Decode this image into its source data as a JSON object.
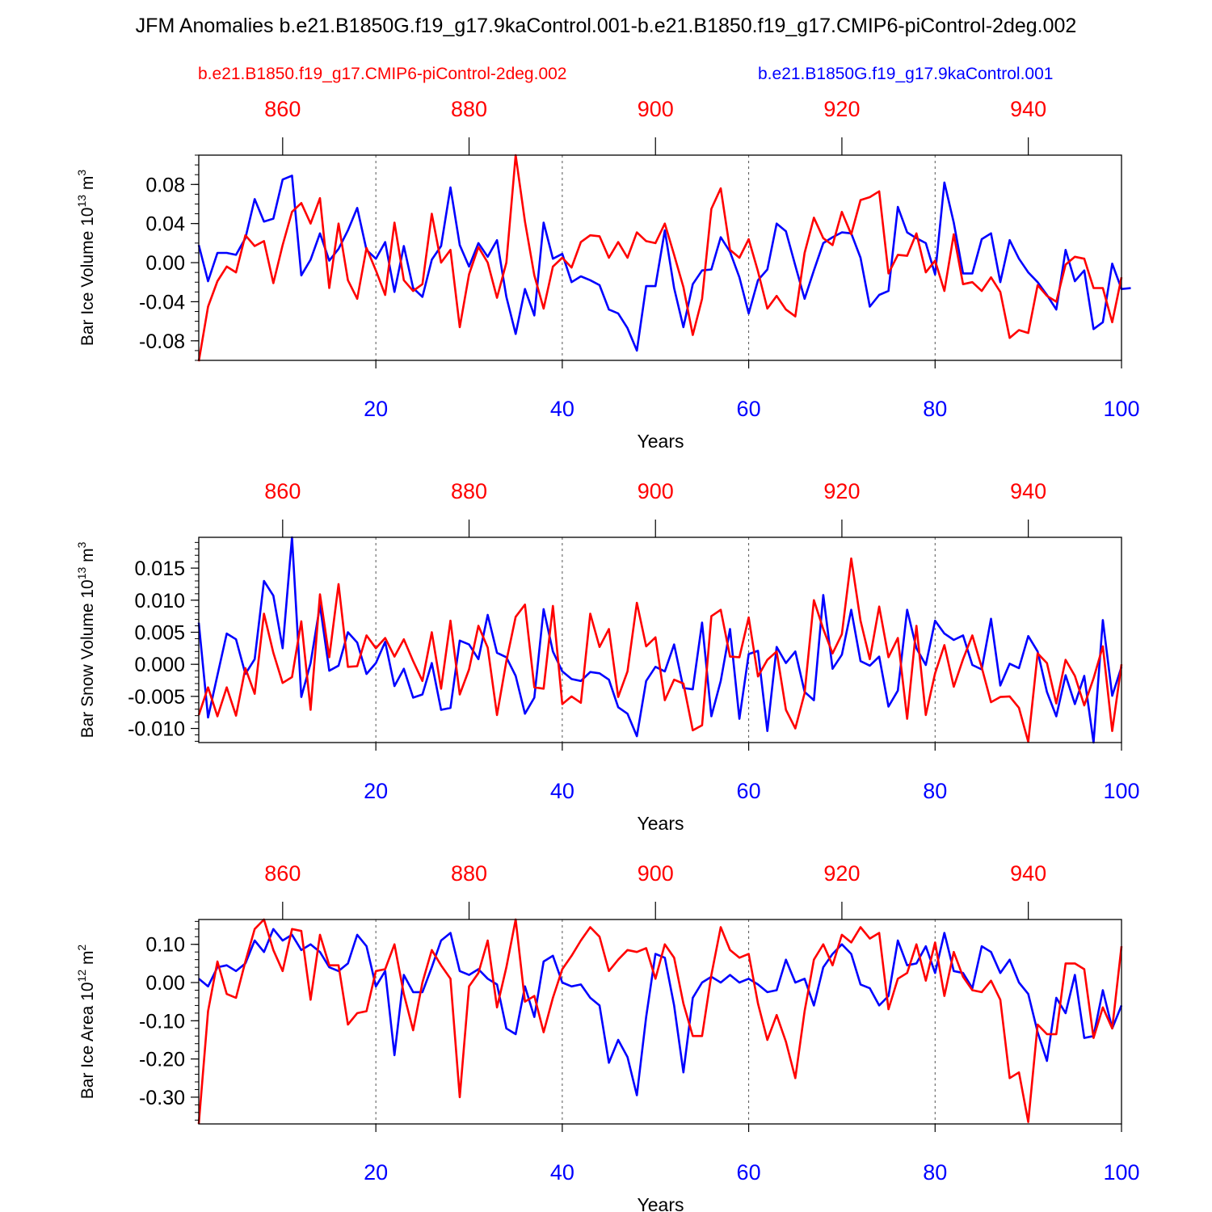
{
  "title": "JFM Anomalies b.e21.B1850G.f19_g17.9kaControl.001-b.e21.B1850.f19_g17.CMIP6-piControl-2deg.002",
  "legend": {
    "red_label": "b.e21.B1850.f19_g17.CMIP6-piControl-2deg.002",
    "blue_label": "b.e21.B1850G.f19_g17.9kaControl.001"
  },
  "colors": {
    "red": "#ff0000",
    "blue": "#0000ff"
  },
  "chart_data": [
    {
      "type": "line",
      "title": "",
      "ylabel": "Bar Ice Volume 10",
      "ylabel_exp": "13",
      "ylabel_unit": " m",
      "ylabel_unit_exp": "3",
      "xlabel": "Years",
      "xlim": [
        1,
        100
      ],
      "ylim": [
        -0.1,
        0.11
      ],
      "yticks": [
        -0.08,
        -0.04,
        0.0,
        0.04,
        0.08
      ],
      "ytick_labels": [
        "-0.08",
        "-0.04",
        "0.00",
        "0.04",
        "0.08"
      ],
      "y_minor_step": 0.01,
      "xticks_bottom": [
        20,
        40,
        60,
        80,
        100
      ],
      "xticks_top": [
        860,
        880,
        900,
        920,
        940
      ],
      "top_axis_offset": 851,
      "series": [
        {
          "name": "b.e21.B1850G.f19_g17.9kaControl.001",
          "color": "blue",
          "values": [
            0.018,
            -0.019,
            0.01,
            0.01,
            0.008,
            0.025,
            0.065,
            0.042,
            0.045,
            0.085,
            0.089,
            -0.013,
            0.003,
            0.03,
            0.002,
            0.014,
            0.033,
            0.056,
            0.013,
            0.004,
            0.021,
            -0.03,
            0.017,
            -0.026,
            -0.035,
            0.003,
            0.017,
            0.077,
            0.018,
            -0.004,
            0.02,
            0.006,
            0.023,
            -0.035,
            -0.073,
            -0.027,
            -0.054,
            0.041,
            0.004,
            0.009,
            -0.02,
            -0.014,
            -0.018,
            -0.023,
            -0.048,
            -0.052,
            -0.067,
            -0.09,
            -0.024,
            -0.024,
            0.033,
            -0.026,
            -0.066,
            -0.022,
            -0.008,
            -0.007,
            0.026,
            0.011,
            -0.015,
            -0.052,
            -0.018,
            -0.007,
            0.04,
            0.032,
            -0.003,
            -0.037,
            -0.008,
            0.02,
            0.026,
            0.031,
            0.03,
            0.005,
            -0.045,
            -0.033,
            -0.029,
            0.057,
            0.031,
            0.025,
            0.02,
            -0.012,
            0.082,
            0.041,
            -0.011,
            -0.011,
            0.024,
            0.03,
            -0.02,
            0.023,
            0.004,
            -0.01,
            -0.02,
            -0.033,
            -0.048,
            0.013,
            -0.019,
            -0.008,
            -0.068,
            -0.061,
            -0.001,
            -0.027,
            -0.026
          ]
        },
        {
          "name": "b.e21.B1850.f19_g17.CMIP6-piControl-2deg.002",
          "color": "red",
          "values": [
            -0.101,
            -0.045,
            -0.019,
            -0.004,
            -0.01,
            0.028,
            0.017,
            0.022,
            -0.021,
            0.018,
            0.052,
            0.061,
            0.04,
            0.066,
            -0.026,
            0.04,
            -0.018,
            -0.037,
            0.015,
            -0.008,
            -0.033,
            0.041,
            -0.018,
            -0.029,
            -0.022,
            0.05,
            0.0,
            0.013,
            -0.066,
            -0.012,
            0.016,
            0.0,
            -0.036,
            0.0,
            0.11,
            0.042,
            -0.013,
            -0.047,
            -0.004,
            0.005,
            -0.005,
            0.021,
            0.028,
            0.027,
            0.005,
            0.021,
            0.005,
            0.031,
            0.022,
            0.02,
            0.04,
            0.008,
            -0.025,
            -0.074,
            -0.037,
            0.055,
            0.076,
            0.013,
            0.005,
            0.024,
            -0.009,
            -0.047,
            -0.034,
            -0.048,
            -0.055,
            0.01,
            0.046,
            0.025,
            0.018,
            0.052,
            0.029,
            0.064,
            0.067,
            0.073,
            -0.011,
            0.008,
            0.007,
            0.03,
            -0.01,
            0.002,
            -0.029,
            0.029,
            -0.022,
            -0.02,
            -0.029,
            -0.015,
            -0.03,
            -0.077,
            -0.069,
            -0.072,
            -0.023,
            -0.034,
            -0.04,
            -0.002,
            0.006,
            0.004,
            -0.026,
            -0.026,
            -0.061,
            -0.015
          ]
        }
      ]
    },
    {
      "type": "line",
      "title": "",
      "ylabel": "Bar Snow Volume 10",
      "ylabel_exp": "13",
      "ylabel_unit": " m",
      "ylabel_unit_exp": "3",
      "xlabel": "Years",
      "xlim": [
        1,
        100
      ],
      "ylim": [
        -0.0122,
        0.0198
      ],
      "yticks": [
        -0.01,
        -0.005,
        0.0,
        0.005,
        0.01,
        0.015
      ],
      "ytick_labels": [
        "-0.010",
        "-0.005",
        "0.000",
        "0.005",
        "0.010",
        "0.015"
      ],
      "y_minor_step": 0.001,
      "xticks_bottom": [
        20,
        40,
        60,
        80,
        100
      ],
      "xticks_top": [
        860,
        880,
        900,
        920,
        940
      ],
      "top_axis_offset": 851,
      "series": [
        {
          "name": "b.e21.B1850G.f19_g17.9kaControl.001",
          "color": "blue",
          "values": [
            0.0065,
            -0.0083,
            -0.0017,
            0.0048,
            0.0039,
            -0.0015,
            0.0008,
            0.013,
            0.0107,
            0.0025,
            0.0198,
            -0.0051,
            0.0002,
            0.0092,
            -0.001,
            -0.0002,
            0.005,
            0.0034,
            -0.0015,
            0.0002,
            0.0035,
            -0.0034,
            -0.0007,
            -0.0052,
            -0.0047,
            0.0002,
            -0.0071,
            -0.0068,
            0.0037,
            0.0031,
            0.0008,
            0.0077,
            0.0018,
            0.0011,
            -0.0018,
            -0.0077,
            -0.0052,
            0.0086,
            0.002,
            -0.0011,
            -0.0023,
            -0.0026,
            -0.0012,
            -0.0014,
            -0.0024,
            -0.0067,
            -0.0077,
            -0.0112,
            -0.0026,
            -0.0004,
            -0.0011,
            0.0031,
            -0.0037,
            -0.0039,
            0.0065,
            -0.0081,
            -0.0026,
            0.0055,
            -0.0085,
            0.0016,
            0.0021,
            -0.0104,
            0.0027,
            0.0002,
            0.002,
            -0.0043,
            -0.0056,
            0.0108,
            -0.0007,
            0.0015,
            0.0085,
            0.0005,
            -0.0002,
            0.0012,
            -0.0066,
            -0.0041,
            0.0085,
            0.0025,
            -0.0001,
            0.0068,
            0.0048,
            0.0038,
            0.0045,
            -0.0001,
            -0.0008,
            0.0071,
            -0.0033,
            0.0001,
            -0.0006,
            0.0044,
            0.002,
            -0.0043,
            -0.0081,
            -0.0017,
            -0.0062,
            -0.0018,
            -0.0122,
            0.0069,
            -0.0049,
            -0.0004
          ]
        },
        {
          "name": "b.e21.B1850.f19_g17.CMIP6-piControl-2deg.002",
          "color": "red",
          "values": [
            -0.0079,
            -0.0036,
            -0.0081,
            -0.0036,
            -0.008,
            -0.0006,
            -0.0046,
            0.0079,
            0.0018,
            -0.0029,
            -0.002,
            0.0067,
            -0.0071,
            0.0109,
            0.0011,
            0.0125,
            -0.0004,
            -0.0003,
            0.0045,
            0.0025,
            0.0041,
            0.0012,
            0.0039,
            0.0005,
            -0.0026,
            0.005,
            -0.0038,
            0.0068,
            -0.0047,
            -0.0008,
            0.006,
            0.0026,
            -0.0079,
            0.0005,
            0.0074,
            0.0093,
            -0.0036,
            -0.0038,
            0.0091,
            -0.0062,
            -0.005,
            -0.006,
            0.0079,
            0.0027,
            0.0055,
            -0.0051,
            -0.0011,
            0.0096,
            0.0028,
            0.0042,
            -0.0056,
            -0.0024,
            -0.003,
            -0.0103,
            -0.0095,
            0.0075,
            0.0085,
            0.0012,
            0.0011,
            0.0073,
            -0.0019,
            0.0007,
            0.002,
            -0.0071,
            -0.01,
            -0.0045,
            0.01,
            0.0055,
            0.0017,
            0.0047,
            0.0165,
            0.0068,
            0.0008,
            0.009,
            0.0011,
            0.0041,
            -0.0085,
            0.006,
            -0.0079,
            -0.0014,
            0.003,
            -0.0035,
            0.0008,
            0.0045,
            -0.0005,
            -0.0059,
            -0.0051,
            -0.005,
            -0.0068,
            -0.0121,
            0.0017,
            0.0002,
            -0.0061,
            0.0007,
            -0.0018,
            -0.0064,
            -0.0022,
            0.0028,
            -0.0104,
            0.0
          ]
        }
      ]
    },
    {
      "type": "line",
      "title": "",
      "ylabel": "Bar Ice Area 10",
      "ylabel_exp": "12",
      "ylabel_unit": " m",
      "ylabel_unit_exp": "2",
      "xlabel": "Years",
      "xlim": [
        1,
        100
      ],
      "ylim": [
        -0.37,
        0.165
      ],
      "yticks": [
        -0.3,
        -0.2,
        -0.1,
        0.0,
        0.1
      ],
      "ytick_labels": [
        "-0.30",
        "-0.20",
        "-0.10",
        "0.00",
        "0.10"
      ],
      "y_minor_step": 0.02,
      "xticks_bottom": [
        20,
        40,
        60,
        80,
        100
      ],
      "xticks_top": [
        860,
        880,
        900,
        920,
        940
      ],
      "top_axis_offset": 851,
      "series": [
        {
          "name": "b.e21.B1850G.f19_g17.9kaControl.001",
          "color": "blue",
          "values": [
            0.01,
            -0.01,
            0.04,
            0.045,
            0.03,
            0.05,
            0.11,
            0.08,
            0.14,
            0.11,
            0.125,
            0.085,
            0.1,
            0.08,
            0.04,
            0.03,
            0.05,
            0.125,
            0.095,
            -0.01,
            0.03,
            -0.19,
            0.02,
            -0.025,
            -0.025,
            0.04,
            0.11,
            0.13,
            0.03,
            0.02,
            0.035,
            0.01,
            -0.005,
            -0.12,
            -0.135,
            -0.01,
            -0.09,
            0.055,
            0.07,
            0.0,
            -0.01,
            -0.005,
            -0.04,
            -0.06,
            -0.21,
            -0.15,
            -0.195,
            -0.295,
            -0.09,
            0.075,
            0.065,
            -0.06,
            -0.235,
            -0.04,
            0.0,
            0.015,
            0.0,
            0.02,
            0.0,
            0.01,
            -0.005,
            -0.025,
            -0.02,
            0.06,
            0.0,
            0.01,
            -0.06,
            0.04,
            0.075,
            0.1,
            0.075,
            -0.005,
            -0.015,
            -0.06,
            -0.035,
            0.11,
            0.045,
            0.05,
            0.095,
            0.025,
            0.13,
            0.03,
            0.025,
            -0.015,
            0.095,
            0.08,
            0.025,
            0.06,
            0.0,
            -0.03,
            -0.13,
            -0.205,
            -0.04,
            -0.08,
            0.02,
            -0.145,
            -0.14,
            -0.02,
            -0.12,
            -0.06
          ]
        },
        {
          "name": "b.e21.B1850.f19_g17.CMIP6-piControl-2deg.002",
          "color": "red",
          "values": [
            -0.37,
            -0.075,
            0.055,
            -0.03,
            -0.04,
            0.055,
            0.14,
            0.165,
            0.085,
            0.03,
            0.14,
            0.135,
            -0.045,
            0.125,
            0.045,
            0.045,
            -0.11,
            -0.08,
            -0.075,
            0.03,
            0.035,
            0.1,
            -0.03,
            -0.125,
            0.0,
            0.085,
            0.045,
            0.01,
            -0.3,
            -0.01,
            0.025,
            0.11,
            -0.065,
            0.04,
            0.165,
            -0.05,
            -0.035,
            -0.13,
            -0.04,
            0.035,
            0.07,
            0.11,
            0.145,
            0.12,
            0.03,
            0.06,
            0.085,
            0.08,
            0.09,
            0.01,
            0.1,
            0.065,
            -0.055,
            -0.14,
            -0.14,
            0.02,
            0.145,
            0.085,
            0.065,
            0.075,
            -0.055,
            -0.15,
            -0.085,
            -0.155,
            -0.25,
            -0.075,
            0.06,
            0.1,
            0.045,
            0.125,
            0.105,
            0.145,
            0.115,
            0.13,
            -0.07,
            0.01,
            0.025,
            0.1,
            0.005,
            0.105,
            -0.035,
            0.08,
            0.015,
            -0.02,
            -0.025,
            0.005,
            -0.045,
            -0.25,
            -0.235,
            -0.365,
            -0.11,
            -0.135,
            -0.135,
            0.05,
            0.05,
            0.035,
            -0.145,
            -0.065,
            -0.12,
            0.095
          ]
        }
      ]
    }
  ]
}
